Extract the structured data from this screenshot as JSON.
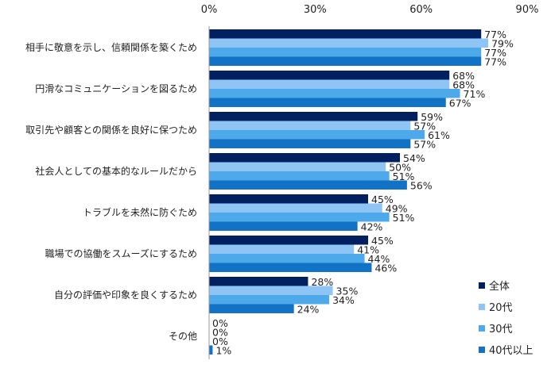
{
  "chart_data": {
    "type": "bar",
    "orientation": "horizontal",
    "title": "",
    "xlabel": "",
    "ylabel": "",
    "xlim": [
      0,
      90
    ],
    "x_ticks": [
      "0%",
      "30%",
      "60%",
      "90%"
    ],
    "x_tick_values": [
      0,
      30,
      60,
      90
    ],
    "x_axis_position": "top",
    "grid": false,
    "legend_position": "bottom-right",
    "categories": [
      "相手に敬意を示し、信頼関係を築くため",
      "円滑なコミュニケーションを図るため",
      "取引先や顧客との関係を良好に保つため",
      "社会人としての基本的なルールだから",
      "トラブルを未然に防ぐため",
      "職場での協働をスムーズにするため",
      "自分の評価や印象を良くするため",
      "その他"
    ],
    "series": [
      {
        "name": "全体",
        "color": "#002060",
        "values": [
          77,
          68,
          59,
          54,
          45,
          45,
          28,
          0
        ]
      },
      {
        "name": "20代",
        "color": "#8fc5f5",
        "values": [
          79,
          68,
          57,
          50,
          49,
          41,
          35,
          0
        ]
      },
      {
        "name": "30代",
        "color": "#4ea9ea",
        "values": [
          77,
          71,
          61,
          51,
          51,
          44,
          34,
          0
        ]
      },
      {
        "name": "40代以上",
        "color": "#1273c6",
        "values": [
          77,
          67,
          57,
          56,
          42,
          46,
          24,
          1
        ]
      }
    ],
    "value_suffix": "%"
  }
}
